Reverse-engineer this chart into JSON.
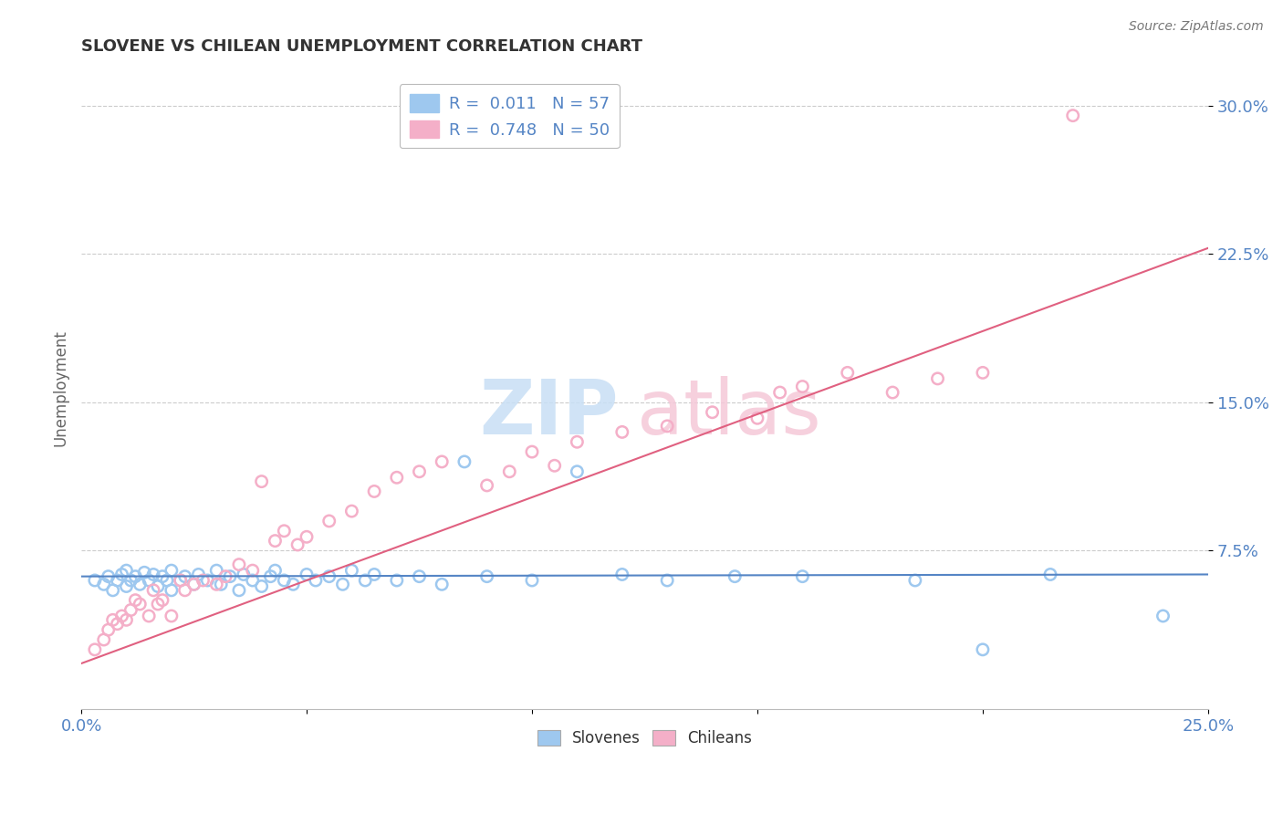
{
  "title": "SLOVENE VS CHILEAN UNEMPLOYMENT CORRELATION CHART",
  "source": "Source: ZipAtlas.com",
  "ylabel": "Unemployment",
  "xlim": [
    0.0,
    0.25
  ],
  "ylim": [
    -0.005,
    0.32
  ],
  "yticks": [
    0.075,
    0.15,
    0.225,
    0.3
  ],
  "ytick_labels": [
    "7.5%",
    "15.0%",
    "22.5%",
    "30.0%"
  ],
  "slovene_R": 0.011,
  "slovene_N": 57,
  "chilean_R": 0.748,
  "chilean_N": 50,
  "slovene_color": "#9ec8ef",
  "chilean_color": "#f4afc8",
  "slovene_line_color": "#5585c5",
  "chilean_line_color": "#e06080",
  "background_color": "#ffffff",
  "slovene_line_y": [
    0.062,
    0.063
  ],
  "chilean_line_y": [
    0.018,
    0.228
  ],
  "slovene_x": [
    0.003,
    0.005,
    0.006,
    0.007,
    0.008,
    0.009,
    0.01,
    0.01,
    0.011,
    0.012,
    0.013,
    0.014,
    0.015,
    0.016,
    0.017,
    0.018,
    0.019,
    0.02,
    0.02,
    0.022,
    0.023,
    0.025,
    0.026,
    0.028,
    0.03,
    0.031,
    0.033,
    0.035,
    0.036,
    0.038,
    0.04,
    0.042,
    0.043,
    0.045,
    0.047,
    0.05,
    0.052,
    0.055,
    0.058,
    0.06,
    0.063,
    0.065,
    0.07,
    0.075,
    0.08,
    0.085,
    0.09,
    0.1,
    0.11,
    0.12,
    0.13,
    0.145,
    0.16,
    0.185,
    0.2,
    0.215,
    0.24
  ],
  "slovene_y": [
    0.06,
    0.058,
    0.062,
    0.055,
    0.06,
    0.063,
    0.057,
    0.065,
    0.06,
    0.062,
    0.058,
    0.064,
    0.06,
    0.063,
    0.057,
    0.062,
    0.06,
    0.055,
    0.065,
    0.06,
    0.062,
    0.058,
    0.063,
    0.06,
    0.065,
    0.058,
    0.062,
    0.055,
    0.063,
    0.06,
    0.057,
    0.062,
    0.065,
    0.06,
    0.058,
    0.063,
    0.06,
    0.062,
    0.058,
    0.065,
    0.06,
    0.063,
    0.06,
    0.062,
    0.058,
    0.12,
    0.062,
    0.06,
    0.115,
    0.063,
    0.06,
    0.062,
    0.062,
    0.06,
    0.025,
    0.063,
    0.042
  ],
  "chilean_x": [
    0.003,
    0.005,
    0.006,
    0.007,
    0.008,
    0.009,
    0.01,
    0.011,
    0.012,
    0.013,
    0.015,
    0.016,
    0.017,
    0.018,
    0.02,
    0.022,
    0.023,
    0.025,
    0.027,
    0.03,
    0.032,
    0.035,
    0.038,
    0.04,
    0.043,
    0.045,
    0.048,
    0.05,
    0.055,
    0.06,
    0.065,
    0.07,
    0.075,
    0.08,
    0.09,
    0.095,
    0.1,
    0.105,
    0.11,
    0.12,
    0.13,
    0.14,
    0.15,
    0.155,
    0.16,
    0.17,
    0.18,
    0.19,
    0.2,
    0.22
  ],
  "chilean_y": [
    0.025,
    0.03,
    0.035,
    0.04,
    0.038,
    0.042,
    0.04,
    0.045,
    0.05,
    0.048,
    0.042,
    0.055,
    0.048,
    0.05,
    0.042,
    0.06,
    0.055,
    0.058,
    0.06,
    0.058,
    0.062,
    0.068,
    0.065,
    0.11,
    0.08,
    0.085,
    0.078,
    0.082,
    0.09,
    0.095,
    0.105,
    0.112,
    0.115,
    0.12,
    0.108,
    0.115,
    0.125,
    0.118,
    0.13,
    0.135,
    0.138,
    0.145,
    0.142,
    0.155,
    0.158,
    0.165,
    0.155,
    0.162,
    0.165,
    0.295
  ]
}
